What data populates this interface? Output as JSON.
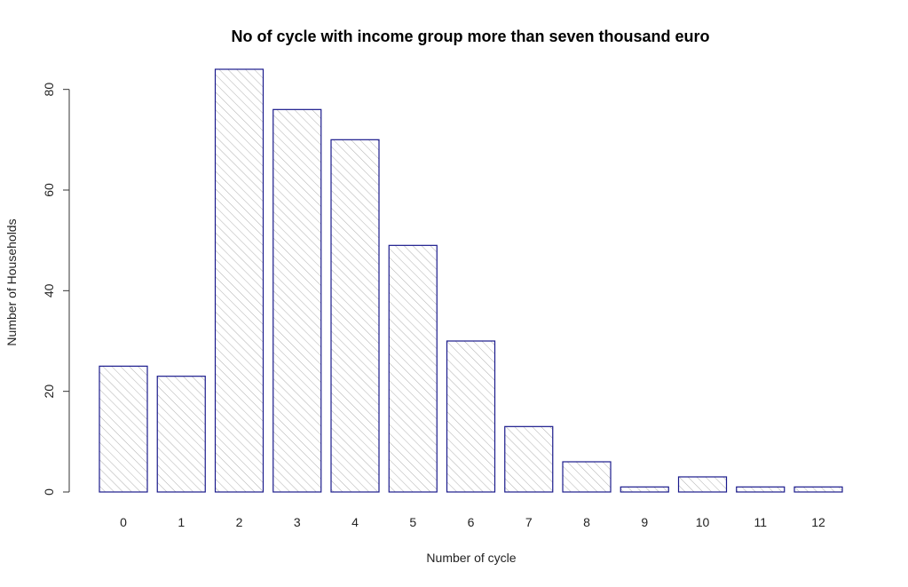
{
  "chart_data": {
    "type": "bar",
    "title": "No of cycle with income group more than seven thousand euro",
    "xlabel": "Number of cycle",
    "ylabel": "Number of Households",
    "categories": [
      "0",
      "1",
      "2",
      "3",
      "4",
      "5",
      "6",
      "7",
      "8",
      "9",
      "10",
      "11",
      "12"
    ],
    "values": [
      25,
      23,
      84,
      76,
      70,
      49,
      30,
      13,
      6,
      1,
      3,
      1,
      1
    ],
    "ylim": [
      0,
      84
    ],
    "yticks": [
      0,
      20,
      40,
      60,
      80
    ],
    "grid": false,
    "legend": "none",
    "bar_fill": "hatched",
    "colors": {
      "bar_border": "#1a1a8c",
      "hatch": "#b0b0b0",
      "axis": "#333333"
    }
  }
}
